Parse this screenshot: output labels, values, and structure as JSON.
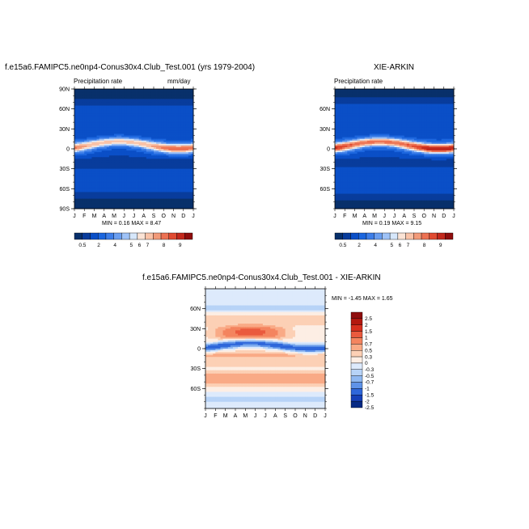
{
  "chart_data": [
    {
      "type": "heatmap",
      "title": "f.e15a6.FAMIPC5.ne0np4-Conus30x4.Club_Test.001 (yrs 1979-2004)",
      "subtitle_left": "Precipitation rate",
      "subtitle_right": "mm/day",
      "stats": "MIN =  0.16 MAX =  8.47",
      "x_tick_labels": [
        "J",
        "F",
        "M",
        "A",
        "M",
        "J",
        "J",
        "A",
        "S",
        "O",
        "N",
        "D",
        "J"
      ],
      "y_tick_labels": [
        "90N",
        "60N",
        "30N",
        "0",
        "30S",
        "60S",
        "90S"
      ],
      "y_tick_values": [
        90,
        60,
        30,
        0,
        -30,
        -60,
        -90
      ],
      "ylim": [
        -90,
        90
      ],
      "colorbar_labels": [
        "0.5",
        "2",
        "4",
        "5",
        "6",
        "7",
        "8",
        "9"
      ],
      "field": "model"
    },
    {
      "type": "heatmap",
      "title": "XIE-ARKIN",
      "subtitle_left": "Precipitation rate",
      "stats": "MIN =  0.19 MAX =  9.15",
      "x_tick_labels": [
        "J",
        "F",
        "M",
        "A",
        "M",
        "J",
        "J",
        "A",
        "S",
        "O",
        "N",
        "D",
        "J"
      ],
      "y_tick_labels": [
        "60N",
        "30N",
        "0",
        "30S",
        "60S"
      ],
      "y_tick_values": [
        60,
        30,
        0,
        -30,
        -60
      ],
      "ylim": [
        -90,
        90
      ],
      "colorbar_labels": [
        "0.5",
        "2",
        "4",
        "5",
        "6",
        "7",
        "8",
        "9"
      ],
      "field": "obs"
    },
    {
      "type": "heatmap",
      "title": "f.e15a6.FAMIPC5.ne0np4-Conus30x4.Club_Test.001 - XIE-ARKIN",
      "stats": "MIN =  -1.45 MAX =   1.65",
      "x_tick_labels": [
        "J",
        "F",
        "M",
        "A",
        "M",
        "J",
        "J",
        "A",
        "S",
        "O",
        "N",
        "D",
        "J"
      ],
      "y_tick_labels": [
        "60N",
        "30N",
        "0",
        "30S",
        "60S"
      ],
      "y_tick_values": [
        60,
        30,
        0,
        -30,
        -60
      ],
      "ylim": [
        -90,
        90
      ],
      "colorbar_labels": [
        "2.5",
        "2",
        "1.5",
        "1",
        "0.7",
        "0.5",
        "0.3",
        "0",
        "-0.3",
        "-0.5",
        "-0.7",
        "-1",
        "-1.5",
        "-2",
        "-2.5"
      ],
      "field": "diff"
    }
  ],
  "colors": {
    "seq": [
      "#08306b",
      "#083c9c",
      "#0a4fc7",
      "#1c66de",
      "#3d7ee8",
      "#6a9ef0",
      "#9ec2f7",
      "#d6e7fb",
      "#fbe3d5",
      "#f9c2a7",
      "#f29a79",
      "#ec7152",
      "#e04a31",
      "#c2281c",
      "#8f0d0d"
    ],
    "div": [
      "#8f0d0d",
      "#b3180f",
      "#d62f1e",
      "#ea5a3e",
      "#f4845f",
      "#f9aa86",
      "#fcd0b5",
      "#fdeee4",
      "#ddeafc",
      "#b7d3f7",
      "#8fb8f1",
      "#5f93e8",
      "#2f67da",
      "#1640b8",
      "#072a85"
    ]
  }
}
